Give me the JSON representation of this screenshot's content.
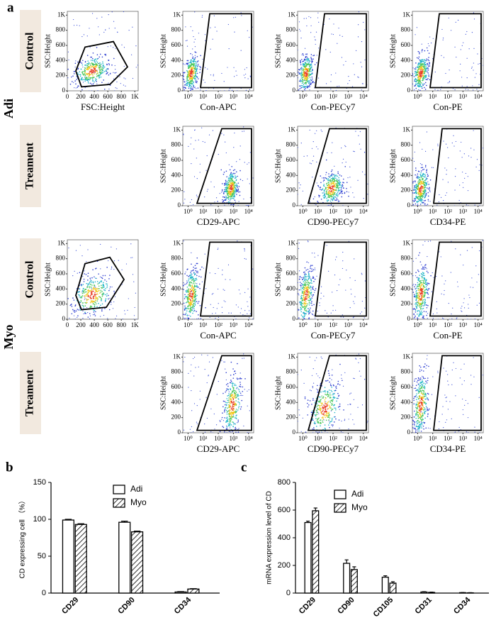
{
  "panel_labels": [
    "a",
    "b",
    "c"
  ],
  "flow": {
    "y_label": "SSC:Height",
    "lin_lim": [
      0,
      1050
    ],
    "lin_ticks": [
      0,
      200,
      400,
      600,
      800,
      {
        "value": 1000,
        "label": "1K"
      }
    ],
    "log_lim": [
      0.45,
      22000
    ],
    "log_ticks": [
      {
        "value": 1,
        "label": "10⁰"
      },
      {
        "value": 10,
        "label": "10¹"
      },
      {
        "value": 100,
        "label": "10²"
      },
      {
        "value": 1000,
        "label": "10³"
      },
      {
        "value": 10000,
        "label": "10⁴"
      }
    ],
    "groups": [
      {
        "name": "Adi",
        "rows": [
          {
            "condition": "Control",
            "plots": [
              {
                "x_scale": "linear",
                "x_label": "FSC:Height"
              },
              {
                "x_scale": "log",
                "x_label": "Con-APC"
              },
              {
                "x_scale": "log",
                "x_label": "Con-PECy7"
              },
              {
                "x_scale": "log",
                "x_label": "Con-PE"
              }
            ]
          },
          {
            "condition": "Treament",
            "plots": [
              {
                "x_scale": "log",
                "x_label": "CD29-APC"
              },
              {
                "x_scale": "log",
                "x_label": "CD90-PECy7"
              },
              {
                "x_scale": "log",
                "x_label": "CD34-PE"
              }
            ]
          }
        ]
      },
      {
        "name": "Myo",
        "rows": [
          {
            "condition": "Control",
            "plots": [
              {
                "x_scale": "linear"
              },
              {
                "x_scale": "log",
                "x_label": "Con-APC"
              },
              {
                "x_scale": "log",
                "x_label": "Con-PECy7"
              },
              {
                "x_scale": "log",
                "x_label": "Con-PE"
              }
            ]
          },
          {
            "condition": "Treament",
            "plots": [
              {
                "x_scale": "log",
                "x_label": "CD29-APC"
              },
              {
                "x_scale": "log",
                "x_label": "CD90-PECy7"
              },
              {
                "x_scale": "log",
                "x_label": "CD34-PE"
              }
            ]
          }
        ]
      }
    ]
  },
  "chart_data": [
    {
      "type": "bar",
      "y_label": "CD expressing cell （%）",
      "categories": [
        "CD29",
        "CD90",
        "CD34"
      ],
      "series": [
        {
          "name": "Adi",
          "fill": "white",
          "values": [
            99,
            96,
            1.5
          ],
          "errors": [
            1,
            1.5,
            0.5
          ]
        },
        {
          "name": "Myo",
          "fill": "hatch",
          "values": [
            93,
            83,
            5.5
          ],
          "errors": [
            1,
            1,
            0.5
          ]
        }
      ],
      "ylim": [
        0,
        150
      ],
      "yticks": [
        0,
        50,
        100,
        150
      ]
    },
    {
      "type": "bar",
      "y_label": "mRNA expression level of CD",
      "categories": [
        "CD29",
        "CD90",
        "CD105",
        "CD31",
        "CD34"
      ],
      "series": [
        {
          "name": "Adi",
          "fill": "white",
          "values": [
            510,
            215,
            115,
            8,
            3
          ],
          "errors": [
            10,
            25,
            10,
            2,
            1
          ]
        },
        {
          "name": "Myo",
          "fill": "hatch",
          "values": [
            595,
            170,
            72,
            5,
            2
          ],
          "errors": [
            20,
            20,
            10,
            2,
            1
          ]
        }
      ],
      "ylim": [
        0,
        800
      ],
      "yticks": [
        0,
        200,
        400,
        600,
        800
      ]
    }
  ]
}
